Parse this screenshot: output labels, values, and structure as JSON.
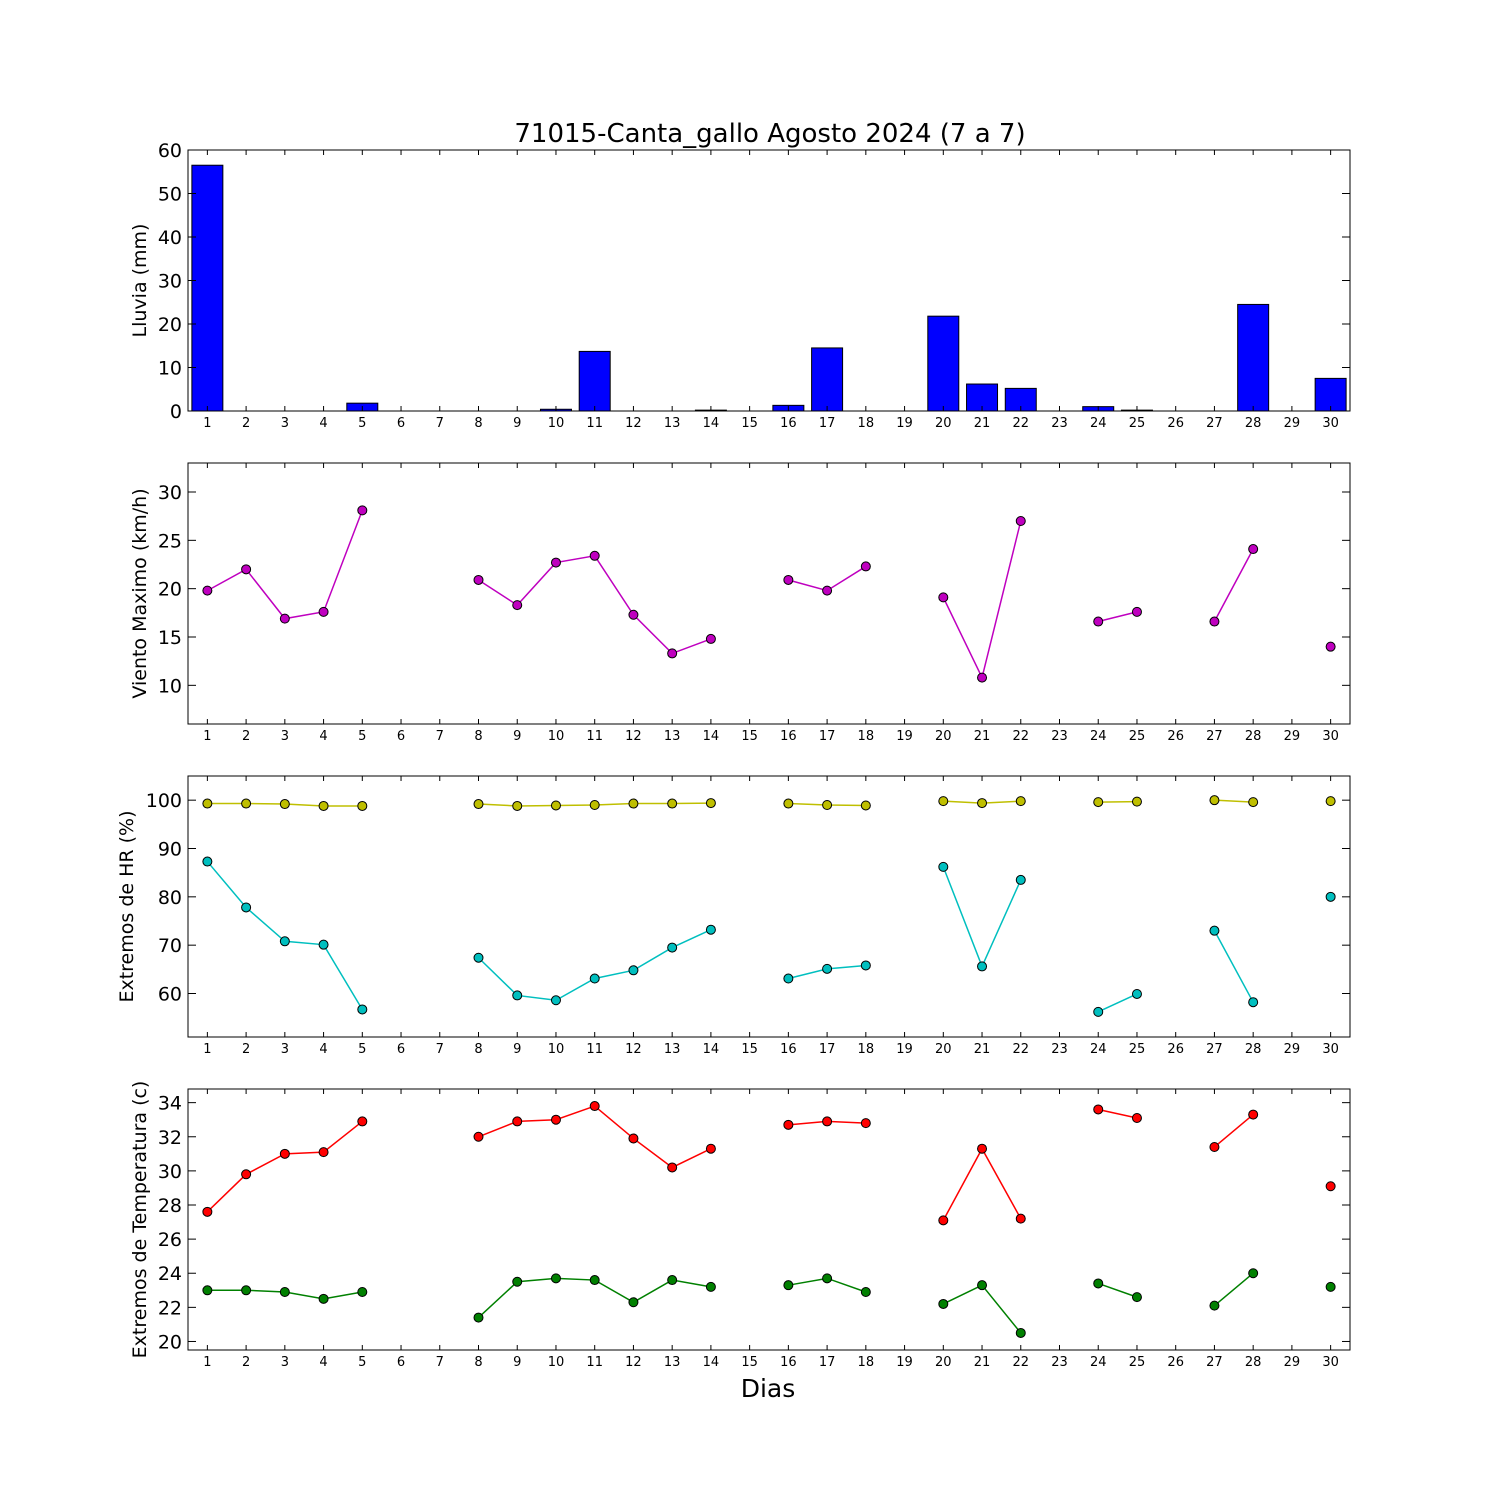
{
  "title": "71015-Canta_gallo Agosto 2024  (7 a 7)",
  "chart_data": [
    {
      "type": "bar",
      "ylabel": "Lluvia (mm)",
      "ylim": [
        0,
        60
      ],
      "yticks": [
        0,
        10,
        20,
        30,
        40,
        50,
        60
      ],
      "categories": [
        "1",
        "2",
        "3",
        "4",
        "5",
        "6",
        "7",
        "8",
        "9",
        "10",
        "11",
        "12",
        "13",
        "14",
        "15",
        "16",
        "17",
        "18",
        "19",
        "20",
        "21",
        "22",
        "23",
        "24",
        "25",
        "26",
        "27",
        "28",
        "29",
        "30"
      ],
      "values": [
        56.5,
        0,
        0,
        0,
        1.8,
        0,
        0,
        0,
        0,
        0.4,
        13.7,
        0,
        0,
        0.2,
        0,
        1.3,
        14.5,
        0,
        0,
        21.8,
        6.2,
        5.2,
        0,
        1.0,
        0.2,
        0,
        0,
        24.5,
        0,
        7.5
      ],
      "colors": {
        "bar": "#0000ff"
      }
    },
    {
      "type": "line",
      "ylabel": "Viento Maximo (km/h)",
      "ylim": [
        6,
        33
      ],
      "yticks": [
        10,
        15,
        20,
        25,
        30
      ],
      "x": [
        1,
        2,
        3,
        4,
        5,
        6,
        7,
        8,
        9,
        10,
        11,
        12,
        13,
        14,
        15,
        16,
        17,
        18,
        19,
        20,
        21,
        22,
        23,
        24,
        25,
        26,
        27,
        28,
        29,
        30
      ],
      "series": [
        {
          "values": [
            19.8,
            22.0,
            16.9,
            17.6,
            28.1,
            null,
            null,
            20.9,
            18.3,
            22.7,
            23.4,
            17.3,
            13.3,
            14.8,
            null,
            20.9,
            19.8,
            22.3,
            null,
            19.1,
            10.8,
            27.0,
            null,
            16.6,
            17.6,
            null,
            16.6,
            24.1,
            null,
            14.0
          ],
          "color": "#bf00bf"
        }
      ]
    },
    {
      "type": "line",
      "ylabel": "Extremos de HR (%)",
      "ylim": [
        51,
        105
      ],
      "yticks": [
        60,
        70,
        80,
        90,
        100
      ],
      "x": [
        1,
        2,
        3,
        4,
        5,
        6,
        7,
        8,
        9,
        10,
        11,
        12,
        13,
        14,
        15,
        16,
        17,
        18,
        19,
        20,
        21,
        22,
        23,
        24,
        25,
        26,
        27,
        28,
        29,
        30
      ],
      "series": [
        {
          "values": [
            99.3,
            99.3,
            99.2,
            98.8,
            98.8,
            null,
            null,
            99.2,
            98.8,
            98.9,
            99.0,
            99.3,
            99.3,
            99.4,
            null,
            99.3,
            99.0,
            98.9,
            null,
            99.8,
            99.4,
            99.8,
            null,
            99.6,
            99.7,
            null,
            100.0,
            99.6,
            null,
            99.8
          ],
          "color": "#bfbf00"
        },
        {
          "values": [
            87.3,
            77.8,
            70.8,
            70.1,
            56.7,
            null,
            null,
            67.4,
            59.6,
            58.6,
            63.1,
            64.8,
            69.5,
            73.2,
            null,
            63.1,
            65.1,
            65.8,
            null,
            86.2,
            65.6,
            83.5,
            null,
            56.2,
            59.9,
            null,
            73.0,
            58.2,
            null,
            80.0
          ],
          "color": "#00bfbf"
        }
      ]
    },
    {
      "type": "line",
      "ylabel": "Extremos de Temperatura (c)",
      "xlabel": "Dias",
      "ylim": [
        19.5,
        34.8
      ],
      "yticks": [
        20,
        22,
        24,
        26,
        28,
        30,
        32,
        34
      ],
      "x": [
        1,
        2,
        3,
        4,
        5,
        6,
        7,
        8,
        9,
        10,
        11,
        12,
        13,
        14,
        15,
        16,
        17,
        18,
        19,
        20,
        21,
        22,
        23,
        24,
        25,
        26,
        27,
        28,
        29,
        30
      ],
      "series": [
        {
          "values": [
            27.6,
            29.8,
            31.0,
            31.1,
            32.9,
            null,
            null,
            32.0,
            32.9,
            33.0,
            33.8,
            31.9,
            30.2,
            31.3,
            null,
            32.7,
            32.9,
            32.8,
            null,
            27.1,
            31.3,
            27.2,
            null,
            33.6,
            33.1,
            null,
            31.4,
            33.3,
            null,
            29.1
          ],
          "color": "#ff0000"
        },
        {
          "values": [
            23.0,
            23.0,
            22.9,
            22.5,
            22.9,
            null,
            null,
            21.4,
            23.5,
            23.7,
            23.6,
            22.3,
            23.6,
            23.2,
            null,
            23.3,
            23.7,
            22.9,
            null,
            22.2,
            23.3,
            20.5,
            null,
            23.4,
            22.6,
            null,
            22.1,
            24.0,
            null,
            23.2
          ],
          "color": "#008000"
        }
      ]
    }
  ]
}
